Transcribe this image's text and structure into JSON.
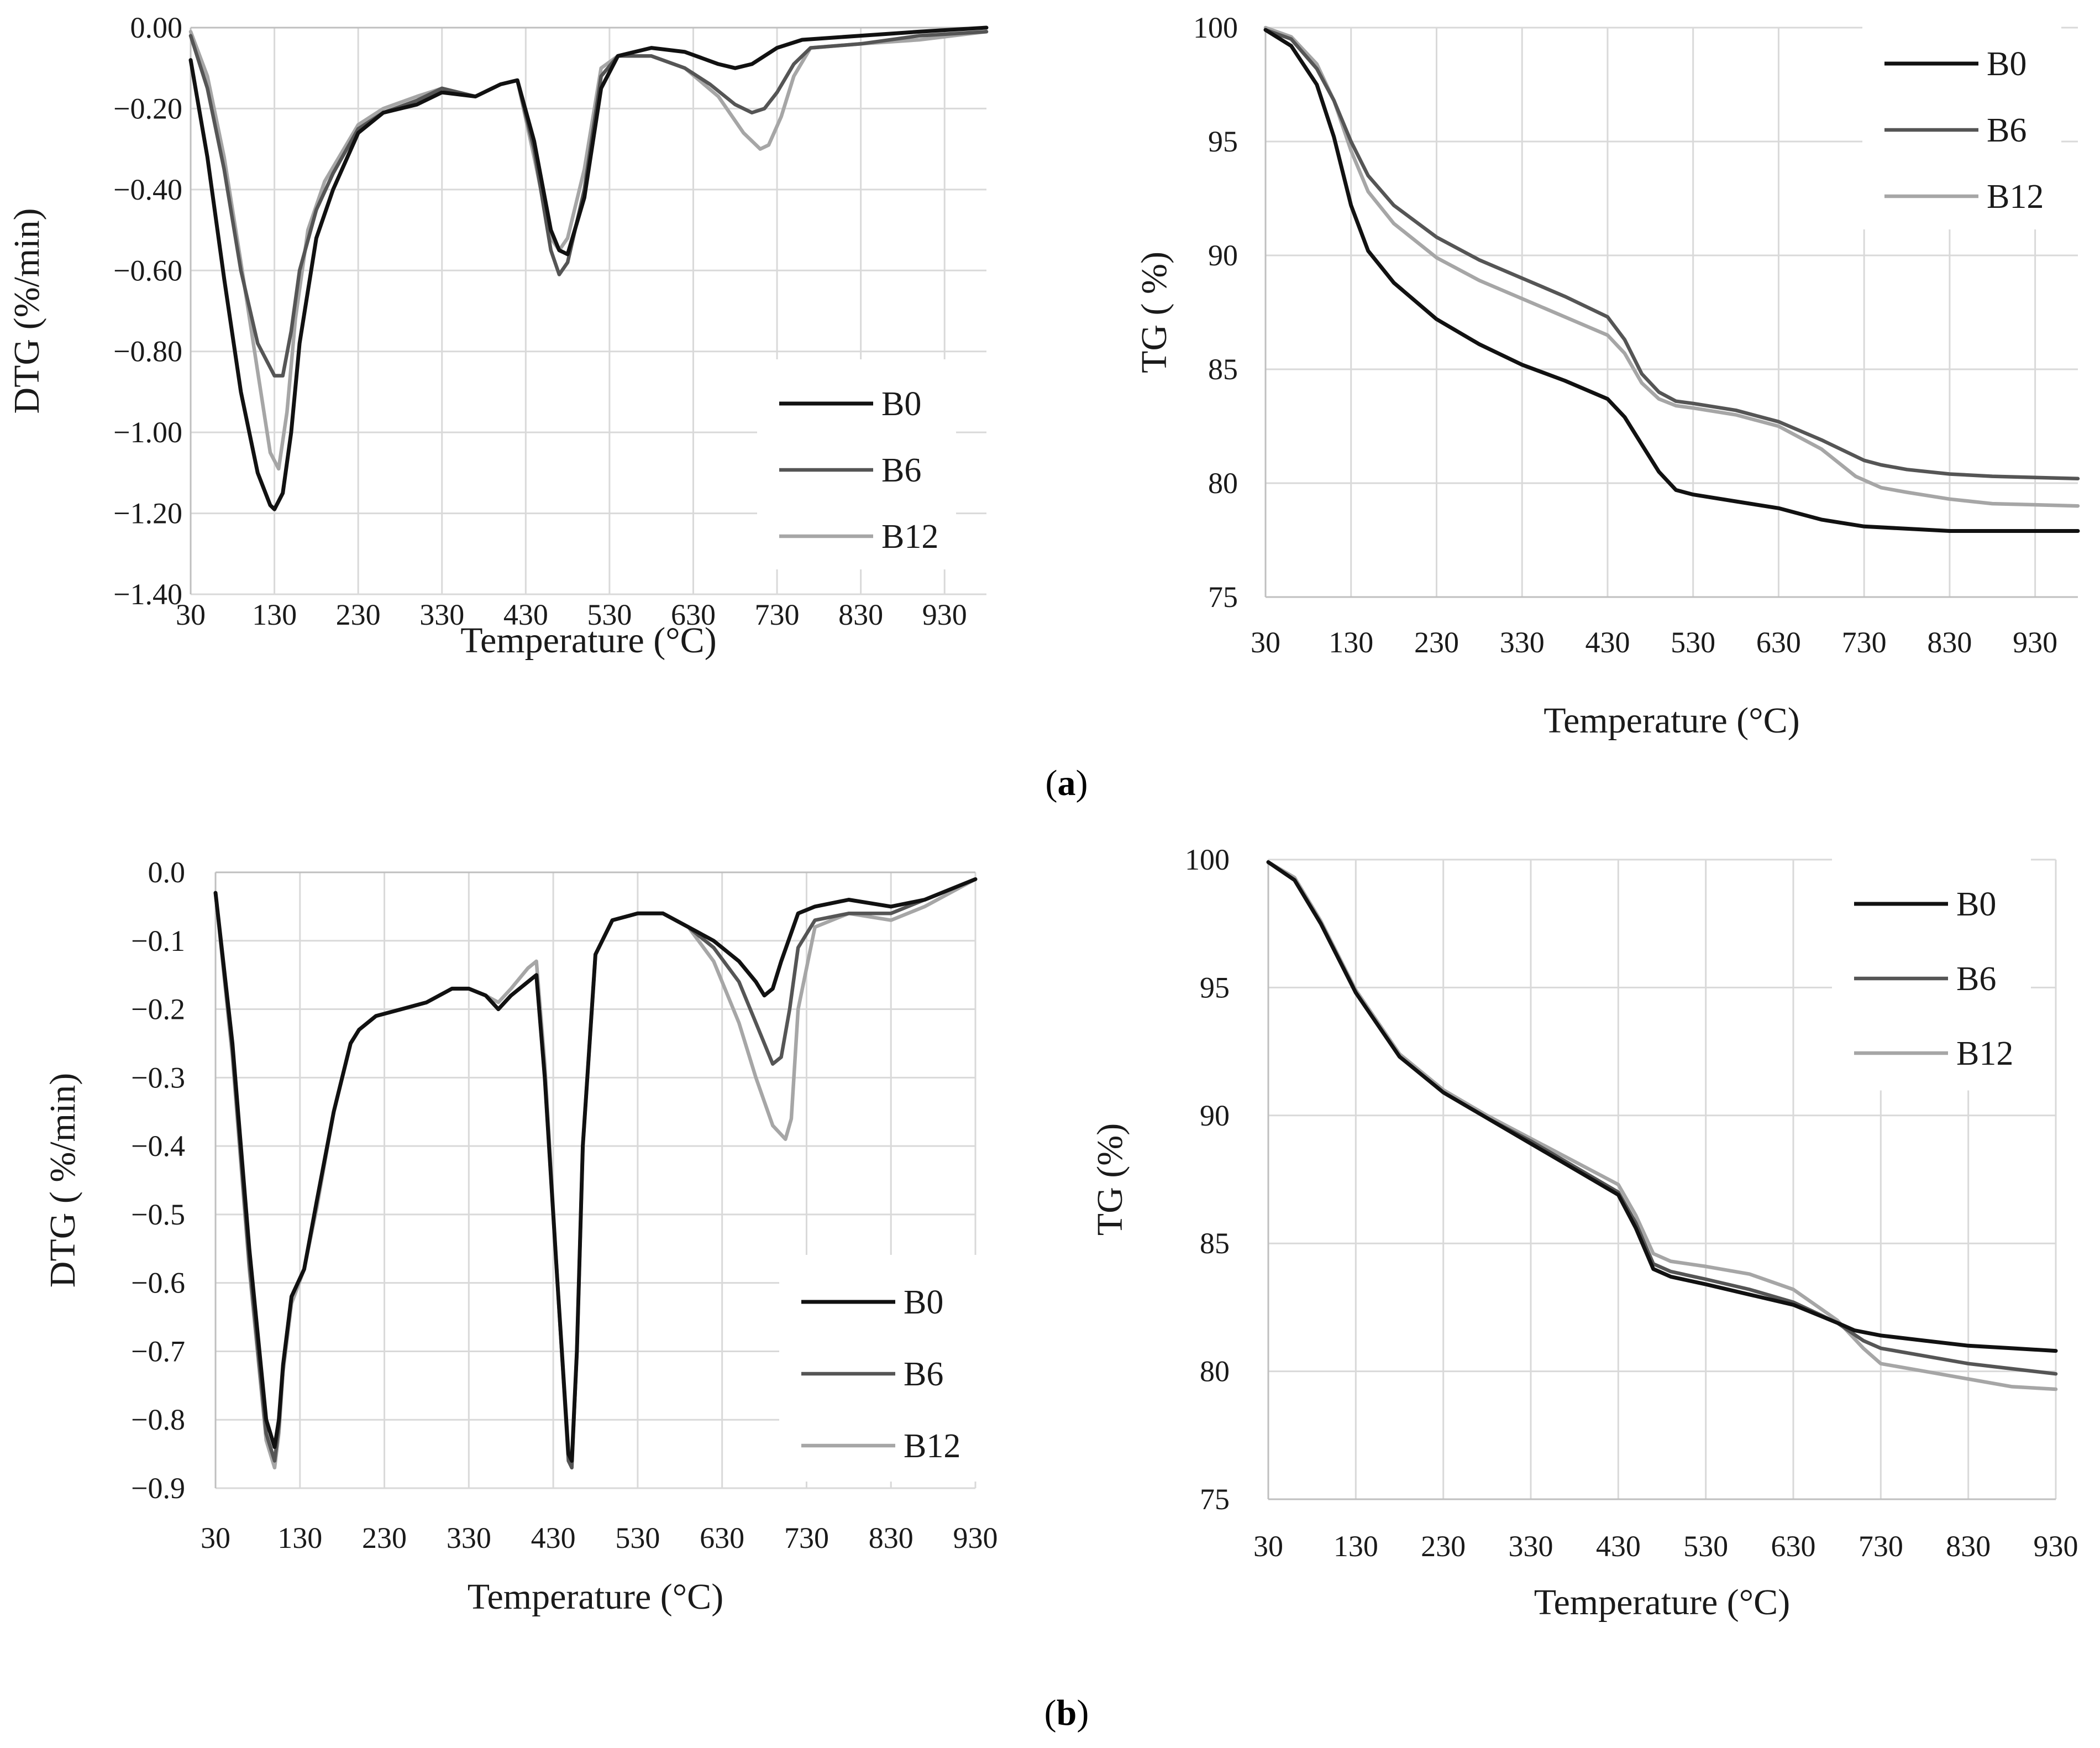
{
  "figure": {
    "caption_a": "a",
    "caption_b": "b",
    "series_colors": {
      "B0": "#111111",
      "B6": "#555555",
      "B12": "#a6a6a6"
    }
  },
  "chart_data": [
    {
      "id": "a-dtg",
      "type": "line",
      "panel": "a",
      "xlabel": "Temperature (°C)",
      "ylabel": "DTG (%/min)",
      "xlim": [
        30,
        980
      ],
      "ylim": [
        -1.4,
        0.0
      ],
      "xticks": [
        "30",
        "130",
        "230",
        "330",
        "430",
        "530",
        "630",
        "730",
        "830",
        "930"
      ],
      "yticks": [
        "0.00",
        "−0.20",
        "−0.40",
        "−0.60",
        "−0.80",
        "−1.00",
        "−1.20",
        "−1.40"
      ],
      "legend": [
        "B0",
        "B6",
        "B12"
      ],
      "legend_position": "bottom-right",
      "series": [
        {
          "name": "B0",
          "x": [
            30,
            50,
            70,
            90,
            110,
            125,
            130,
            140,
            150,
            160,
            180,
            200,
            230,
            260,
            300,
            330,
            370,
            400,
            420,
            440,
            460,
            470,
            480,
            500,
            520,
            540,
            580,
            620,
            660,
            680,
            700,
            730,
            760,
            830,
            900,
            980
          ],
          "y": [
            -0.08,
            -0.32,
            -0.62,
            -0.9,
            -1.1,
            -1.18,
            -1.19,
            -1.15,
            -1.0,
            -0.78,
            -0.52,
            -0.4,
            -0.26,
            -0.21,
            -0.19,
            -0.16,
            -0.17,
            -0.14,
            -0.13,
            -0.28,
            -0.5,
            -0.55,
            -0.56,
            -0.42,
            -0.15,
            -0.07,
            -0.05,
            -0.06,
            -0.09,
            -0.1,
            -0.09,
            -0.05,
            -0.03,
            -0.02,
            -0.01,
            0.0
          ]
        },
        {
          "name": "B6",
          "x": [
            30,
            50,
            70,
            90,
            110,
            130,
            140,
            150,
            160,
            180,
            200,
            230,
            260,
            300,
            330,
            370,
            400,
            420,
            440,
            460,
            470,
            480,
            500,
            520,
            540,
            580,
            620,
            650,
            680,
            700,
            715,
            730,
            750,
            770,
            830,
            900,
            980
          ],
          "y": [
            -0.02,
            -0.15,
            -0.35,
            -0.6,
            -0.78,
            -0.86,
            -0.86,
            -0.75,
            -0.6,
            -0.45,
            -0.36,
            -0.25,
            -0.21,
            -0.18,
            -0.15,
            -0.17,
            -0.14,
            -0.13,
            -0.3,
            -0.55,
            -0.61,
            -0.58,
            -0.4,
            -0.12,
            -0.07,
            -0.07,
            -0.1,
            -0.14,
            -0.19,
            -0.21,
            -0.2,
            -0.16,
            -0.09,
            -0.05,
            -0.04,
            -0.02,
            -0.01
          ]
        },
        {
          "name": "B12",
          "x": [
            30,
            50,
            70,
            90,
            110,
            125,
            135,
            145,
            155,
            170,
            190,
            230,
            260,
            300,
            330,
            370,
            400,
            420,
            440,
            460,
            470,
            480,
            500,
            520,
            540,
            580,
            620,
            660,
            690,
            710,
            720,
            735,
            750,
            770,
            830,
            900,
            980
          ],
          "y": [
            -0.01,
            -0.12,
            -0.32,
            -0.58,
            -0.85,
            -1.05,
            -1.09,
            -0.95,
            -0.72,
            -0.5,
            -0.38,
            -0.24,
            -0.2,
            -0.17,
            -0.15,
            -0.17,
            -0.14,
            -0.13,
            -0.32,
            -0.52,
            -0.55,
            -0.52,
            -0.35,
            -0.1,
            -0.07,
            -0.07,
            -0.1,
            -0.17,
            -0.26,
            -0.3,
            -0.29,
            -0.22,
            -0.12,
            -0.05,
            -0.04,
            -0.03,
            -0.01
          ]
        }
      ]
    },
    {
      "id": "a-tg",
      "type": "line",
      "panel": "a",
      "xlabel": "Temperature (°C)",
      "ylabel": "TG ( %)",
      "xlim": [
        30,
        980
      ],
      "ylim": [
        75,
        100
      ],
      "xticks": [
        "30",
        "130",
        "230",
        "330",
        "430",
        "530",
        "630",
        "730",
        "830",
        "930"
      ],
      "yticks": [
        "100",
        "95",
        "90",
        "85",
        "80",
        "75"
      ],
      "legend": [
        "B0",
        "B6",
        "B12"
      ],
      "legend_position": "top-right",
      "series": [
        {
          "name": "B0",
          "x": [
            30,
            60,
            90,
            110,
            130,
            150,
            180,
            230,
            280,
            330,
            380,
            430,
            450,
            470,
            490,
            510,
            530,
            580,
            630,
            680,
            730,
            780,
            830,
            880,
            980
          ],
          "y": [
            99.9,
            99.2,
            97.5,
            95.2,
            92.2,
            90.2,
            88.8,
            87.2,
            86.1,
            85.2,
            84.5,
            83.7,
            82.9,
            81.7,
            80.5,
            79.7,
            79.5,
            79.2,
            78.9,
            78.4,
            78.1,
            78.0,
            77.9,
            77.9,
            77.9
          ]
        },
        {
          "name": "B6",
          "x": [
            30,
            60,
            90,
            110,
            130,
            150,
            180,
            230,
            280,
            330,
            380,
            430,
            450,
            470,
            490,
            510,
            530,
            580,
            630,
            680,
            730,
            750,
            780,
            830,
            880,
            980
          ],
          "y": [
            99.9,
            99.5,
            98.2,
            96.8,
            95.0,
            93.5,
            92.2,
            90.8,
            89.8,
            89.0,
            88.2,
            87.3,
            86.3,
            84.8,
            84.0,
            83.6,
            83.5,
            83.2,
            82.7,
            81.9,
            81.0,
            80.8,
            80.6,
            80.4,
            80.3,
            80.2
          ]
        },
        {
          "name": "B12",
          "x": [
            30,
            60,
            90,
            110,
            130,
            150,
            180,
            230,
            280,
            330,
            380,
            430,
            450,
            470,
            490,
            510,
            530,
            580,
            630,
            680,
            720,
            750,
            780,
            830,
            880,
            980
          ],
          "y": [
            100.0,
            99.6,
            98.4,
            96.8,
            94.6,
            92.8,
            91.4,
            89.9,
            88.9,
            88.1,
            87.3,
            86.5,
            85.7,
            84.4,
            83.7,
            83.4,
            83.3,
            83.0,
            82.5,
            81.5,
            80.3,
            79.8,
            79.6,
            79.3,
            79.1,
            79.0
          ]
        }
      ]
    },
    {
      "id": "b-dtg",
      "type": "line",
      "panel": "b",
      "xlabel": "Temperature (°C)",
      "ylabel": "DTG ( %/min)",
      "xlim": [
        30,
        930
      ],
      "ylim": [
        -0.9,
        0.0
      ],
      "xticks": [
        "30",
        "130",
        "230",
        "330",
        "430",
        "530",
        "630",
        "730",
        "830",
        "930"
      ],
      "yticks": [
        "0.0",
        "−0.1",
        "−0.2",
        "−0.3",
        "−0.4",
        "−0.5",
        "−0.6",
        "−0.7",
        "−0.8",
        "−0.9"
      ],
      "legend": [
        "B0",
        "B6",
        "B12"
      ],
      "legend_position": "bottom-right",
      "series": [
        {
          "name": "B0",
          "x": [
            30,
            50,
            70,
            90,
            100,
            105,
            110,
            120,
            135,
            150,
            170,
            190,
            200,
            220,
            250,
            280,
            310,
            330,
            350,
            365,
            380,
            400,
            410,
            420,
            435,
            448,
            452,
            458,
            465,
            480,
            500,
            530,
            560,
            590,
            620,
            650,
            670,
            680,
            690,
            700,
            720,
            740,
            780,
            830,
            870,
            930
          ],
          "y": [
            -0.03,
            -0.25,
            -0.55,
            -0.8,
            -0.84,
            -0.8,
            -0.72,
            -0.62,
            -0.58,
            -0.48,
            -0.35,
            -0.25,
            -0.23,
            -0.21,
            -0.2,
            -0.19,
            -0.17,
            -0.17,
            -0.18,
            -0.2,
            -0.18,
            -0.16,
            -0.15,
            -0.3,
            -0.6,
            -0.85,
            -0.86,
            -0.7,
            -0.4,
            -0.12,
            -0.07,
            -0.06,
            -0.06,
            -0.08,
            -0.1,
            -0.13,
            -0.16,
            -0.18,
            -0.17,
            -0.13,
            -0.06,
            -0.05,
            -0.04,
            -0.05,
            -0.04,
            -0.01
          ]
        },
        {
          "name": "B6",
          "x": [
            30,
            50,
            70,
            90,
            100,
            105,
            110,
            120,
            135,
            150,
            170,
            190,
            200,
            220,
            250,
            280,
            310,
            330,
            350,
            365,
            380,
            400,
            410,
            420,
            435,
            448,
            452,
            458,
            465,
            480,
            500,
            530,
            560,
            590,
            620,
            650,
            670,
            690,
            700,
            710,
            720,
            740,
            780,
            830,
            870,
            930
          ],
          "y": [
            -0.03,
            -0.26,
            -0.57,
            -0.82,
            -0.86,
            -0.81,
            -0.72,
            -0.62,
            -0.58,
            -0.48,
            -0.35,
            -0.25,
            -0.23,
            -0.21,
            -0.2,
            -0.19,
            -0.17,
            -0.17,
            -0.18,
            -0.2,
            -0.18,
            -0.16,
            -0.15,
            -0.3,
            -0.6,
            -0.86,
            -0.87,
            -0.7,
            -0.4,
            -0.12,
            -0.07,
            -0.06,
            -0.06,
            -0.08,
            -0.11,
            -0.16,
            -0.22,
            -0.28,
            -0.27,
            -0.2,
            -0.11,
            -0.07,
            -0.06,
            -0.06,
            -0.04,
            -0.01
          ]
        },
        {
          "name": "B12",
          "x": [
            30,
            50,
            70,
            90,
            100,
            105,
            110,
            120,
            135,
            150,
            170,
            190,
            200,
            220,
            250,
            280,
            310,
            330,
            350,
            365,
            380,
            400,
            410,
            420,
            435,
            448,
            452,
            458,
            465,
            480,
            500,
            530,
            560,
            590,
            620,
            650,
            670,
            690,
            705,
            712,
            720,
            740,
            780,
            830,
            870,
            930
          ],
          "y": [
            -0.03,
            -0.27,
            -0.58,
            -0.83,
            -0.87,
            -0.82,
            -0.73,
            -0.63,
            -0.58,
            -0.49,
            -0.35,
            -0.25,
            -0.23,
            -0.21,
            -0.2,
            -0.19,
            -0.17,
            -0.17,
            -0.18,
            -0.19,
            -0.17,
            -0.14,
            -0.13,
            -0.28,
            -0.6,
            -0.85,
            -0.86,
            -0.7,
            -0.4,
            -0.12,
            -0.07,
            -0.06,
            -0.06,
            -0.08,
            -0.13,
            -0.22,
            -0.3,
            -0.37,
            -0.39,
            -0.36,
            -0.2,
            -0.08,
            -0.06,
            -0.07,
            -0.05,
            -0.01
          ]
        }
      ]
    },
    {
      "id": "b-tg",
      "type": "line",
      "panel": "b",
      "xlabel": "Temperature (°C)",
      "ylabel": "TG (%)",
      "xlim": [
        30,
        930
      ],
      "ylim": [
        75,
        100
      ],
      "xticks": [
        "30",
        "130",
        "230",
        "330",
        "430",
        "530",
        "630",
        "730",
        "830",
        "930"
      ],
      "yticks": [
        "100",
        "95",
        "90",
        "85",
        "80",
        "75"
      ],
      "legend": [
        "B0",
        "B6",
        "B12"
      ],
      "legend_position": "top-right",
      "series": [
        {
          "name": "B0",
          "x": [
            30,
            60,
            90,
            130,
            180,
            230,
            280,
            330,
            380,
            430,
            450,
            470,
            490,
            530,
            580,
            630,
            680,
            700,
            730,
            780,
            830,
            880,
            930
          ],
          "y": [
            99.9,
            99.2,
            97.5,
            94.8,
            92.3,
            90.9,
            89.9,
            88.9,
            87.9,
            86.9,
            85.6,
            84.0,
            83.7,
            83.4,
            83.0,
            82.6,
            81.9,
            81.6,
            81.4,
            81.2,
            81.0,
            80.9,
            80.8
          ]
        },
        {
          "name": "B6",
          "x": [
            30,
            60,
            90,
            130,
            180,
            230,
            280,
            330,
            380,
            430,
            450,
            470,
            490,
            530,
            580,
            630,
            680,
            710,
            730,
            780,
            830,
            880,
            930
          ],
          "y": [
            99.9,
            99.2,
            97.5,
            94.8,
            92.3,
            90.9,
            89.9,
            89.0,
            88.0,
            87.0,
            85.8,
            84.2,
            83.9,
            83.6,
            83.2,
            82.7,
            81.9,
            81.2,
            80.9,
            80.6,
            80.3,
            80.1,
            79.9
          ]
        },
        {
          "name": "B12",
          "x": [
            30,
            60,
            90,
            130,
            180,
            230,
            280,
            330,
            380,
            430,
            450,
            470,
            490,
            530,
            580,
            630,
            680,
            710,
            730,
            780,
            830,
            880,
            930
          ],
          "y": [
            99.9,
            99.3,
            97.6,
            94.9,
            92.4,
            91.0,
            90.0,
            89.1,
            88.2,
            87.3,
            86.1,
            84.6,
            84.3,
            84.1,
            83.8,
            83.2,
            82.0,
            80.9,
            80.3,
            80.0,
            79.7,
            79.4,
            79.3
          ]
        }
      ]
    }
  ]
}
